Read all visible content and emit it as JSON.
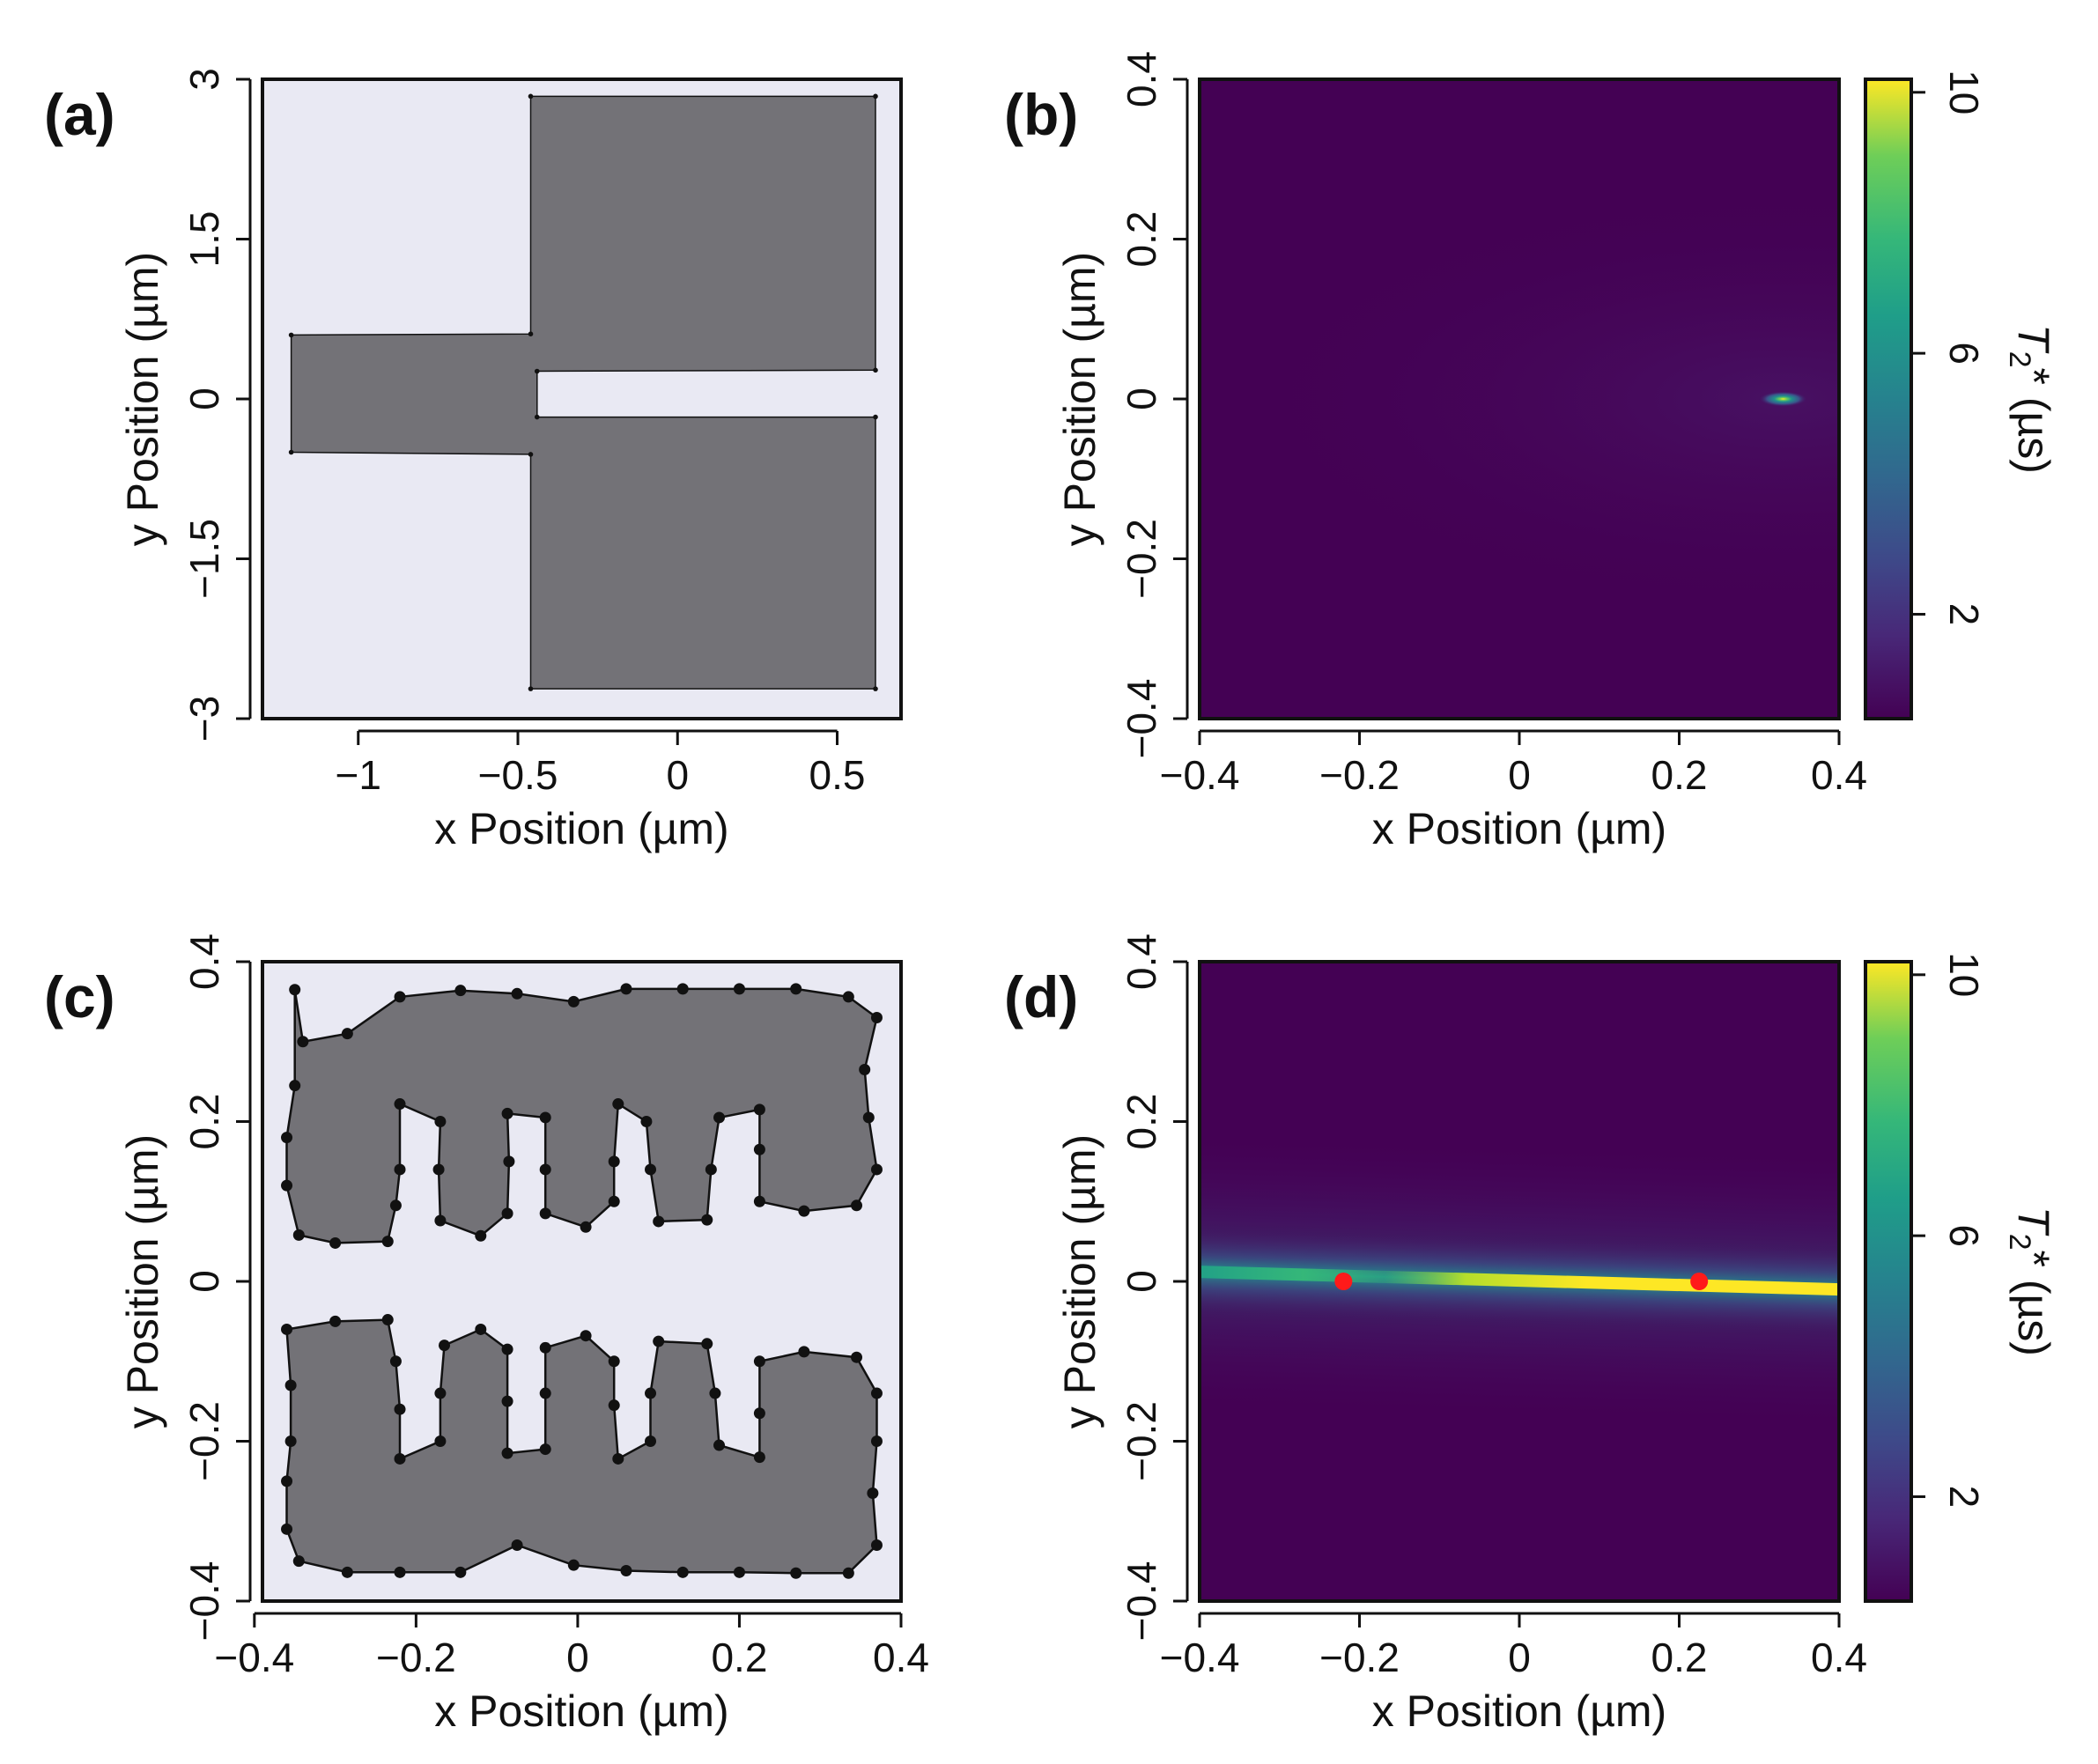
{
  "chart_data": [
    {
      "panel": "(a)",
      "type": "scatter",
      "xlabel": "x Position (µm)",
      "ylabel": "y Position (µm)",
      "xlim": [
        -1.3,
        0.7
      ],
      "ylim": [
        -3.0,
        3.0
      ],
      "xticks": [
        -1,
        -0.5,
        0,
        0.5
      ],
      "xtick_labels": [
        "−1",
        "−0.5",
        "0",
        "0.5"
      ],
      "yticks": [
        3,
        1.5,
        0,
        -1.5,
        -3
      ],
      "ytick_labels": [
        "3",
        "1.5",
        "0",
        "−1.5",
        "−3"
      ],
      "background": "#e9e9f3",
      "fill_color": "#737277",
      "polygons": [
        [
          [
            -1.21,
            0.6
          ],
          [
            -0.46,
            0.61
          ],
          [
            -0.46,
            2.84
          ],
          [
            0.62,
            2.84
          ],
          [
            0.62,
            0.27
          ],
          [
            -0.44,
            0.26
          ],
          [
            -0.44,
            -0.17
          ],
          [
            0.62,
            -0.17
          ],
          [
            0.62,
            -2.72
          ],
          [
            -0.46,
            -2.72
          ],
          [
            -0.46,
            -0.52
          ],
          [
            -1.21,
            -0.5
          ]
        ]
      ]
    },
    {
      "panel": "(b)",
      "type": "heatmap",
      "xlabel": "x Position (µm)",
      "ylabel": "y Position (µm)",
      "xlim": [
        -0.4,
        0.4
      ],
      "ylim": [
        -0.4,
        0.4
      ],
      "xticks": [
        -0.4,
        -0.2,
        0,
        0.2,
        0.4
      ],
      "xtick_labels": [
        "−0.4",
        "−0.2",
        "0",
        "0.2",
        "0.4"
      ],
      "yticks": [
        0.4,
        0.2,
        0,
        -0.2,
        -0.4
      ],
      "ytick_labels": [
        "0.4",
        "0.2",
        "0",
        "−0.2",
        "−0.4"
      ],
      "colorbar": {
        "title_main": "T",
        "title_sub": "2",
        "title_rest": "* (µs)",
        "ticks": [
          10,
          6,
          2
        ],
        "tick_labels": [
          "10",
          "6",
          "2"
        ],
        "range": [
          0.4,
          10.2
        ],
        "colormap": "viridis"
      },
      "hotspot": {
        "x": 0.33,
        "y": 0.0,
        "peak_value": 10
      }
    },
    {
      "panel": "(c)",
      "type": "scatter",
      "xlabel": "x Position (µm)",
      "ylabel": "y Position (µm)",
      "xlim": [
        -0.39,
        0.4
      ],
      "ylim": [
        -0.4,
        0.4
      ],
      "xticks": [
        -0.4,
        -0.2,
        0,
        0.2,
        0.4
      ],
      "xtick_labels": [
        "−0.4",
        "−0.2",
        "0",
        "0.2",
        "0.4"
      ],
      "yticks": [
        0.4,
        0.2,
        0,
        -0.2,
        -0.4
      ],
      "ytick_labels": [
        "0.4",
        "0.2",
        "0",
        "−0.2",
        "−0.4"
      ],
      "background": "#e9e9f3",
      "fill_color": "#737277",
      "polygons": [
        [
          [
            -0.35,
            0.365
          ],
          [
            -0.34,
            0.3
          ],
          [
            -0.285,
            0.31
          ],
          [
            -0.22,
            0.356
          ],
          [
            -0.145,
            0.364
          ],
          [
            -0.075,
            0.36
          ],
          [
            -0.005,
            0.35
          ],
          [
            0.06,
            0.366
          ],
          [
            0.13,
            0.366
          ],
          [
            0.2,
            0.366
          ],
          [
            0.27,
            0.366
          ],
          [
            0.335,
            0.356
          ],
          [
            0.37,
            0.33
          ],
          [
            0.355,
            0.265
          ],
          [
            0.36,
            0.205
          ],
          [
            0.37,
            0.14
          ],
          [
            0.345,
            0.095
          ],
          [
            0.28,
            0.088
          ],
          [
            0.225,
            0.1
          ],
          [
            0.225,
            0.165
          ],
          [
            0.225,
            0.215
          ],
          [
            0.175,
            0.205
          ],
          [
            0.165,
            0.14
          ],
          [
            0.16,
            0.077
          ],
          [
            0.1,
            0.075
          ],
          [
            0.09,
            0.14
          ],
          [
            0.085,
            0.2
          ],
          [
            0.05,
            0.222
          ],
          [
            0.045,
            0.15
          ],
          [
            0.045,
            0.1
          ],
          [
            0.01,
            0.068
          ],
          [
            -0.04,
            0.085
          ],
          [
            -0.04,
            0.14
          ],
          [
            -0.04,
            0.205
          ],
          [
            -0.087,
            0.21
          ],
          [
            -0.085,
            0.15
          ],
          [
            -0.087,
            0.085
          ],
          [
            -0.12,
            0.057
          ],
          [
            -0.17,
            0.076
          ],
          [
            -0.172,
            0.14
          ],
          [
            -0.17,
            0.2
          ],
          [
            -0.22,
            0.222
          ],
          [
            -0.22,
            0.14
          ],
          [
            -0.225,
            0.095
          ],
          [
            -0.235,
            0.05
          ],
          [
            -0.3,
            0.048
          ],
          [
            -0.345,
            0.058
          ],
          [
            -0.36,
            0.12
          ],
          [
            -0.36,
            0.18
          ],
          [
            -0.35,
            0.245
          ]
        ],
        [
          [
            -0.36,
            -0.06
          ],
          [
            -0.3,
            -0.05
          ],
          [
            -0.235,
            -0.048
          ],
          [
            -0.225,
            -0.1
          ],
          [
            -0.22,
            -0.16
          ],
          [
            -0.22,
            -0.222
          ],
          [
            -0.17,
            -0.2
          ],
          [
            -0.17,
            -0.14
          ],
          [
            -0.165,
            -0.08
          ],
          [
            -0.12,
            -0.06
          ],
          [
            -0.087,
            -0.085
          ],
          [
            -0.087,
            -0.15
          ],
          [
            -0.087,
            -0.215
          ],
          [
            -0.04,
            -0.21
          ],
          [
            -0.04,
            -0.14
          ],
          [
            -0.04,
            -0.083
          ],
          [
            0.01,
            -0.068
          ],
          [
            0.045,
            -0.1
          ],
          [
            0.045,
            -0.155
          ],
          [
            0.05,
            -0.222
          ],
          [
            0.09,
            -0.2
          ],
          [
            0.09,
            -0.14
          ],
          [
            0.1,
            -0.075
          ],
          [
            0.16,
            -0.078
          ],
          [
            0.17,
            -0.14
          ],
          [
            0.175,
            -0.205
          ],
          [
            0.225,
            -0.22
          ],
          [
            0.225,
            -0.165
          ],
          [
            0.225,
            -0.1
          ],
          [
            0.28,
            -0.088
          ],
          [
            0.345,
            -0.095
          ],
          [
            0.37,
            -0.14
          ],
          [
            0.37,
            -0.2
          ],
          [
            0.365,
            -0.265
          ],
          [
            0.37,
            -0.33
          ],
          [
            0.335,
            -0.365
          ],
          [
            0.27,
            -0.365
          ],
          [
            0.2,
            -0.364
          ],
          [
            0.13,
            -0.364
          ],
          [
            0.06,
            -0.362
          ],
          [
            -0.005,
            -0.355
          ],
          [
            -0.075,
            -0.33
          ],
          [
            -0.145,
            -0.364
          ],
          [
            -0.22,
            -0.364
          ],
          [
            -0.285,
            -0.364
          ],
          [
            -0.345,
            -0.35
          ],
          [
            -0.36,
            -0.31
          ],
          [
            -0.36,
            -0.25
          ],
          [
            -0.355,
            -0.2
          ],
          [
            -0.355,
            -0.13
          ]
        ]
      ]
    },
    {
      "panel": "(d)",
      "type": "heatmap",
      "xlabel": "x Position (µm)",
      "ylabel": "y Position (µm)",
      "xlim": [
        -0.4,
        0.4
      ],
      "ylim": [
        -0.4,
        0.4
      ],
      "xticks": [
        -0.4,
        -0.2,
        0,
        0.2,
        0.4
      ],
      "xtick_labels": [
        "−0.4",
        "−0.2",
        "0",
        "0.2",
        "0.4"
      ],
      "yticks": [
        0.4,
        0.2,
        0,
        -0.2,
        -0.4
      ],
      "ytick_labels": [
        "0.4",
        "0.2",
        "0",
        "−0.2",
        "−0.4"
      ],
      "colorbar": {
        "title_main": "T",
        "title_sub": "2",
        "title_rest": "* (µs)",
        "ticks": [
          10,
          6,
          2
        ],
        "tick_labels": [
          "10",
          "6",
          "2"
        ],
        "range": [
          0.4,
          10.2
        ],
        "colormap": "viridis"
      },
      "ridge": {
        "x_start": -0.4,
        "y_start": 0.012,
        "x_end": 0.4,
        "y_end": -0.01,
        "peak_value": 10
      },
      "markers": {
        "color": "#ff1a1a",
        "points": [
          [
            -0.22,
            0.0
          ],
          [
            0.225,
            0.0
          ]
        ]
      }
    }
  ]
}
